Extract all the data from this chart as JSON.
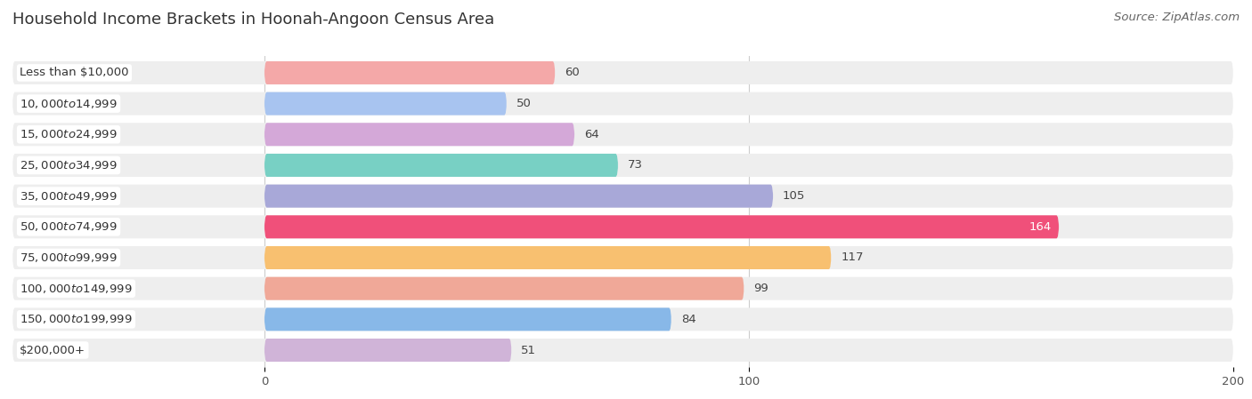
{
  "title": "Household Income Brackets in Hoonah-Angoon Census Area",
  "source": "Source: ZipAtlas.com",
  "categories": [
    "Less than $10,000",
    "$10,000 to $14,999",
    "$15,000 to $24,999",
    "$25,000 to $34,999",
    "$35,000 to $49,999",
    "$50,000 to $74,999",
    "$75,000 to $99,999",
    "$100,000 to $149,999",
    "$150,000 to $199,999",
    "$200,000+"
  ],
  "values": [
    60,
    50,
    64,
    73,
    105,
    164,
    117,
    99,
    84,
    51
  ],
  "bar_colors": [
    "#F4A8A8",
    "#A8C4F0",
    "#D4A8D8",
    "#78D0C4",
    "#A8A8D8",
    "#F0507A",
    "#F8C070",
    "#F0A898",
    "#88B8E8",
    "#D0B4D8"
  ],
  "background_color": "#ffffff",
  "row_bg_color": "#eeeeee",
  "xlim": [
    0,
    200
  ],
  "xticks": [
    0,
    100,
    200
  ],
  "title_fontsize": 13,
  "label_fontsize": 9.5,
  "value_fontsize": 9.5,
  "source_fontsize": 9.5
}
